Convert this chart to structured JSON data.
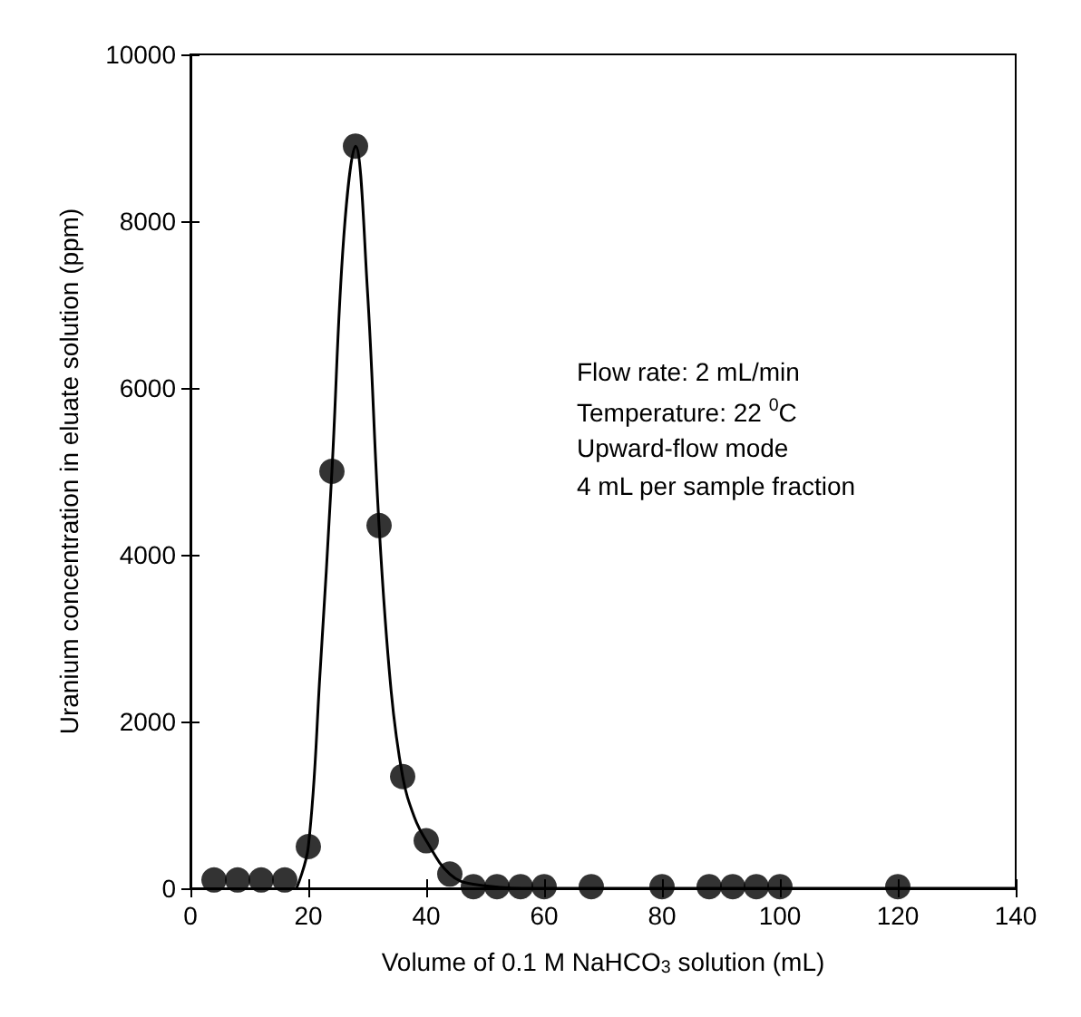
{
  "chart_data": {
    "type": "scatter",
    "xlabel": "Volume of 0.1 M NaHCO$_{3}$ solution (mL)",
    "ylabel": "Uranium concentration in eluate solution (ppm)",
    "xlim": [
      0,
      140
    ],
    "xticks": [
      0,
      20,
      40,
      60,
      80,
      100,
      120,
      140
    ],
    "ylim": [
      0,
      10000
    ],
    "yticks": [
      0,
      2000,
      4000,
      6000,
      8000,
      10000
    ],
    "grid": false,
    "marker": "circle",
    "series": [
      {
        "color": "#000000",
        "x": [
          4,
          8,
          12,
          16,
          20,
          24,
          28,
          32,
          36,
          40,
          44,
          48,
          52,
          56,
          60,
          68,
          80,
          88,
          92,
          96,
          100,
          120
        ],
        "values": [
          100,
          100,
          100,
          100,
          500,
          5000,
          8900,
          4350,
          1340,
          570,
          170,
          20,
          20,
          20,
          20,
          20,
          20,
          20,
          20,
          20,
          20,
          20
        ]
      },
      {
        "type": "line",
        "color": "#000000",
        "marker": "none",
        "line_style": "solid",
        "x": [
          18,
          20,
          22,
          24,
          26,
          28,
          30,
          32,
          34,
          36,
          38,
          40,
          44,
          48,
          60,
          140
        ],
        "values": [
          0,
          500,
          2600,
          5000,
          7800,
          8900,
          7200,
          4350,
          2400,
          1340,
          850,
          570,
          170,
          50,
          0,
          0
        ]
      }
    ],
    "annotations": [
      "Flow rate: 2 mL/min",
      "Temperature: 22 $^{0}$C",
      "Upward-flow mode",
      "4 mL per sample fraction"
    ]
  }
}
